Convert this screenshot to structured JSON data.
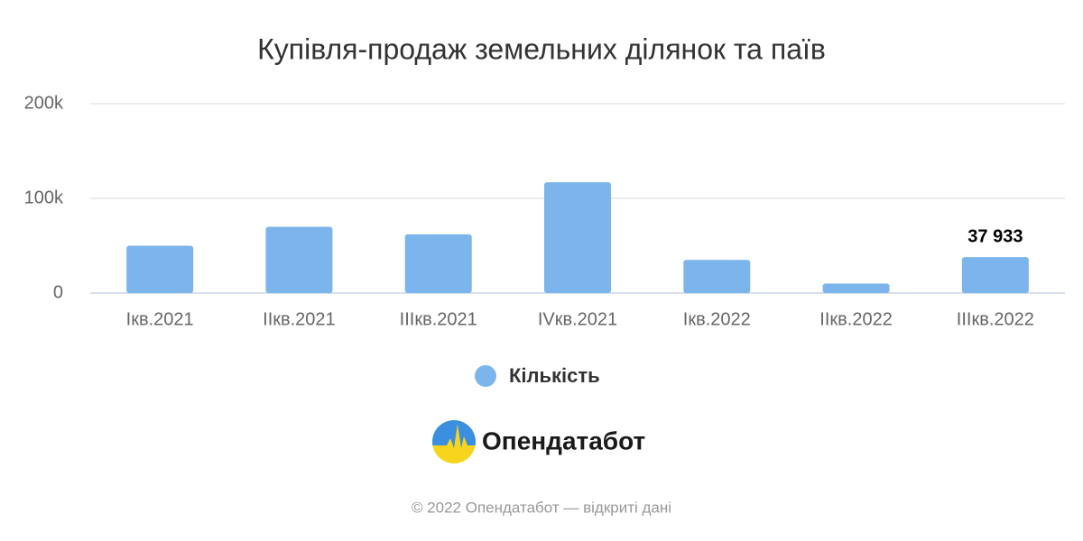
{
  "chart_data": {
    "type": "bar",
    "title": "Купівля-продаж земельних ділянок та паїв",
    "categories": [
      "Iкв.2021",
      "IIкв.2021",
      "IIIкв.2021",
      "IVкв.2021",
      "Iкв.2022",
      "IIкв.2022",
      "IIIкв.2022"
    ],
    "series": [
      {
        "name": "Кількість",
        "color": "#7cb5ec",
        "values": [
          50000,
          70000,
          62000,
          117000,
          35000,
          10000,
          37933
        ],
        "value_labels": [
          null,
          null,
          null,
          null,
          null,
          null,
          "37 933"
        ]
      }
    ],
    "ylim": [
      0,
      200000
    ],
    "yticks": [
      0,
      {
        "value": 100000,
        "label": "100k"
      },
      {
        "value": 200000,
        "label": "200k"
      }
    ],
    "grid": true,
    "legend": "bottom"
  },
  "branding": {
    "logo_text": "Опендатабот",
    "footer": "© 2022 Опендатабот — відкриті дані"
  }
}
